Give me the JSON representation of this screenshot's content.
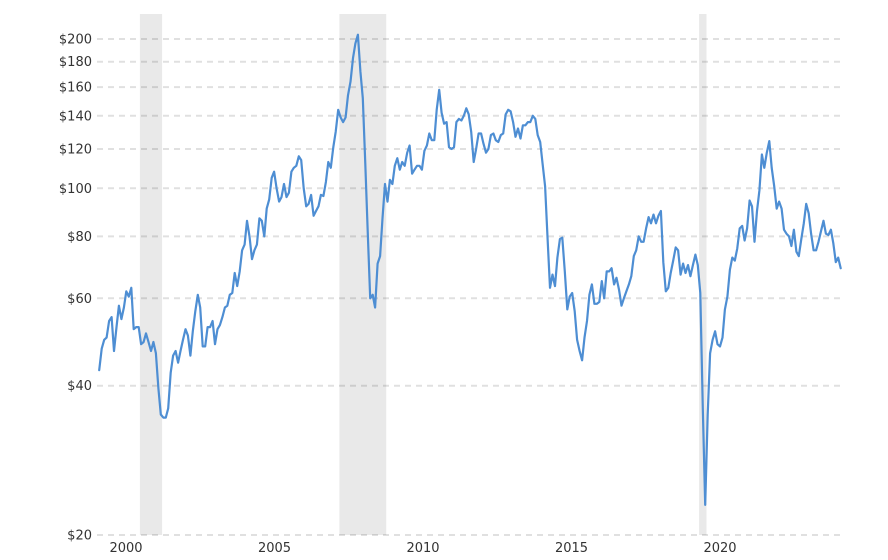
{
  "chart_data": {
    "type": "line",
    "title": "",
    "y_axis": {
      "unit": "$",
      "scale": "log",
      "ticks": [
        20,
        40,
        60,
        80,
        100,
        120,
        140,
        160,
        180,
        200
      ],
      "tick_labels": [
        "$20",
        "$40",
        "$60",
        "$80",
        "$100",
        "$120",
        "$140",
        "$160",
        "$180",
        "$200"
      ],
      "range": [
        20,
        210
      ],
      "grid": "dashed"
    },
    "x_axis": {
      "ticks": [
        2000,
        2005,
        2010,
        2015,
        2020
      ],
      "tick_labels": [
        "2000",
        "2005",
        "2010",
        "2015",
        "2020"
      ],
      "range_start": "1999-10",
      "range_end": "2024-11"
    },
    "recession_bands": [
      {
        "start": "2001-03",
        "end": "2001-11"
      },
      {
        "start": "2007-12",
        "end": "2009-06"
      },
      {
        "start": "2020-02",
        "end": "2020-04"
      }
    ],
    "series": [
      {
        "name": "price",
        "frequency": "monthly",
        "start": "1999-10",
        "values": [
          43,
          47.5,
          49.5,
          50,
          54,
          55,
          47,
          52.5,
          58,
          54.5,
          57.5,
          62,
          60.5,
          63,
          52,
          52.5,
          52.5,
          48.5,
          49,
          51,
          49,
          47,
          49,
          46.5,
          39.5,
          35,
          34.5,
          34.5,
          36,
          42.5,
          46,
          47,
          44.5,
          47,
          49.5,
          52,
          50.5,
          46,
          51.5,
          56.5,
          61,
          57.5,
          48,
          48,
          52.5,
          52.5,
          54,
          48.5,
          52,
          53,
          55,
          57.5,
          58,
          61,
          61.5,
          67.5,
          63.5,
          68,
          75,
          77,
          86,
          80,
          72,
          75,
          77,
          87,
          86,
          80,
          91,
          95,
          105,
          108,
          100,
          94,
          96,
          102,
          96,
          98,
          108,
          110,
          111,
          116,
          114,
          100,
          92,
          93,
          97,
          88,
          90,
          92,
          97,
          96.5,
          103,
          113,
          110,
          121,
          130,
          144,
          139,
          136,
          139,
          154,
          164,
          183,
          196,
          204,
          172,
          152,
          112,
          82,
          60,
          61,
          57.5,
          70.5,
          73,
          87,
          102,
          94,
          104,
          102,
          111,
          115,
          109,
          113,
          111,
          118,
          122,
          107,
          109,
          111,
          111,
          109,
          119,
          122,
          129,
          125,
          125,
          144,
          158,
          142,
          135,
          136,
          121,
          120,
          121,
          136,
          138,
          137,
          140,
          145,
          141,
          130,
          113,
          120,
          129,
          129,
          123,
          118,
          120,
          128,
          129,
          125,
          124,
          128,
          129,
          141,
          144,
          143,
          136,
          127,
          132,
          126,
          134,
          134,
          136,
          136,
          140,
          138,
          128,
          124,
          112,
          101,
          79,
          63,
          67,
          63.5,
          72.5,
          79,
          79.5,
          68,
          57,
          60.5,
          61.5,
          56.5,
          49.5,
          47,
          45,
          50,
          54,
          61,
          64,
          58.5,
          58.5,
          59,
          65,
          60,
          68,
          68,
          69,
          64,
          66,
          62.5,
          58,
          60,
          62,
          64,
          66.5,
          73,
          75,
          80,
          78,
          78,
          83,
          87.5,
          85,
          88.5,
          85,
          88,
          90,
          71,
          62,
          63,
          67.5,
          71.5,
          76,
          75,
          67,
          70.5,
          67.5,
          70,
          66.5,
          70,
          73.5,
          70,
          61.5,
          36,
          23,
          35,
          46.5,
          49.5,
          51.5,
          48.5,
          48,
          50,
          57,
          60.5,
          68.5,
          72.5,
          71.5,
          75.5,
          83,
          84,
          78.5,
          83,
          94.5,
          92,
          78,
          90,
          99,
          117,
          110,
          118,
          124.5,
          110,
          101,
          91,
          94,
          91,
          82.5,
          81,
          80,
          76.5,
          82.5,
          74.5,
          73,
          79,
          85,
          93,
          89,
          81,
          75,
          75,
          78,
          82,
          86,
          81,
          80.5,
          82.5,
          77.5,
          71,
          72.5,
          69
        ]
      }
    ],
    "colors": {
      "line": "#4e8ed3",
      "recession_band": "#e9e9e9",
      "gridline": "rgba(0,0,0,0.12)",
      "text": "#333333",
      "background": "#ffffff"
    },
    "legend": "none"
  }
}
